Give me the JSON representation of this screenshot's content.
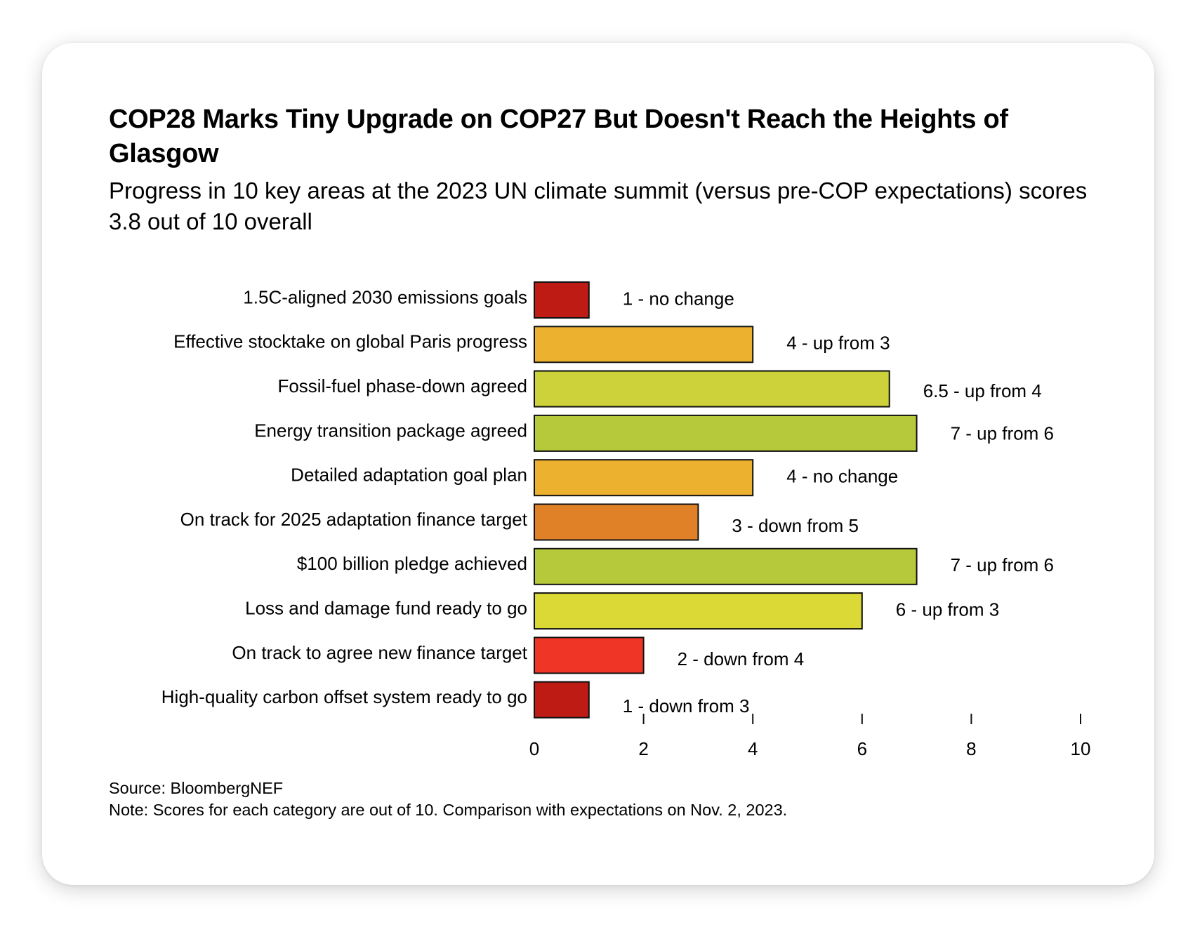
{
  "title": "COP28 Marks Tiny Upgrade on COP27 But Doesn't Reach the Heights of Glasgow",
  "subtitle": "Progress in 10 key areas at the 2023 UN climate summit (versus pre-COP expectations) scores 3.8 out of 10 overall",
  "source": "Source: BloombergNEF",
  "note": "Note: Scores for each category are out of 10. Comparison with expectations on Nov. 2, 2023.",
  "chart_data": {
    "type": "bar",
    "orientation": "horizontal",
    "title": "COP28 Marks Tiny Upgrade on COP27 But Doesn't Reach the Heights of Glasgow",
    "subtitle": "Progress in 10 key areas at the 2023 UN climate summit (versus pre-COP expectations) scores 3.8 out of 10 overall",
    "xlabel": "",
    "ylabel": "",
    "xlim": [
      0,
      10
    ],
    "xticks": [
      0,
      2,
      4,
      6,
      8,
      10
    ],
    "grid": false,
    "categories": [
      "1.5C-aligned 2030 emissions goals",
      "Effective stocktake on global Paris progress",
      "Fossil-fuel phase-down agreed",
      "Energy transition package agreed",
      "Detailed adaptation goal plan",
      "On track for 2025 adaptation finance target",
      "$100 billion pledge achieved",
      "Loss and damage fund ready to go",
      "On track to agree new finance target",
      "High-quality carbon offset system ready to go"
    ],
    "values": [
      1,
      4,
      6.5,
      7,
      4,
      3,
      7,
      6,
      2,
      1
    ],
    "data_labels": [
      "1 - no change",
      "4 - up from 3",
      "6.5 - up from 4",
      "7 - up from 6",
      "4 - no change",
      "3 - down from 5",
      "7 - up from 6",
      "6 - up from 3",
      "2 - down from 4",
      "1 - down from 3"
    ],
    "colors": [
      "#bf1b15",
      "#ecb12f",
      "#cdd13a",
      "#b5c93a",
      "#ecb12f",
      "#e08128",
      "#b5c93a",
      "#dad935",
      "#ef3526",
      "#bf1b15"
    ],
    "bar_outline": "#111111"
  }
}
